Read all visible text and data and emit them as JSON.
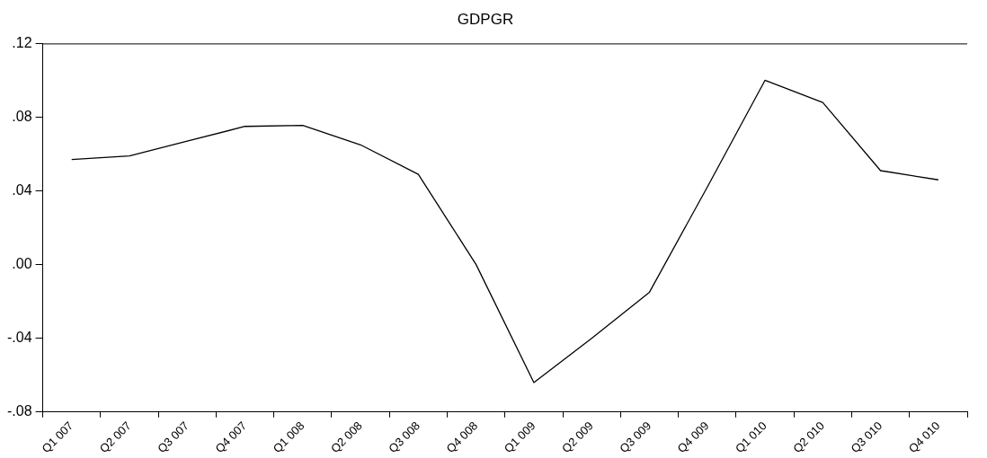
{
  "chart_data": {
    "type": "line",
    "title": "GDPGR",
    "categories": [
      "Q1 007",
      "Q2 007",
      "Q3 007",
      "Q4 007",
      "Q1 008",
      "Q2 008",
      "Q3 008",
      "Q4 008",
      "Q1 009",
      "Q2 009",
      "Q3 009",
      "Q4 009",
      "Q1 010",
      "Q2 010",
      "Q3 010",
      "Q4 010"
    ],
    "series": [
      {
        "color": "#000000",
        "values": [
          0.057,
          0.059,
          0.067,
          0.075,
          0.0755,
          0.065,
          0.049,
          0.0,
          -0.064,
          -0.04,
          -0.015,
          0.042,
          0.1,
          0.088,
          0.051,
          0.046
        ]
      }
    ],
    "ylim": [
      -0.08,
      0.12
    ],
    "yticks": [
      {
        "value": -0.08,
        "label": "-.08"
      },
      {
        "value": -0.04,
        "label": "-.04"
      },
      {
        "value": 0,
        "label": ".00"
      },
      {
        "value": 0.04,
        "label": ".04"
      },
      {
        "value": 0.08,
        "label": ".08"
      },
      {
        "value": 0.12,
        "label": ".12"
      }
    ],
    "grid": false,
    "legend": false,
    "marker": "none",
    "line_style": "solid"
  }
}
